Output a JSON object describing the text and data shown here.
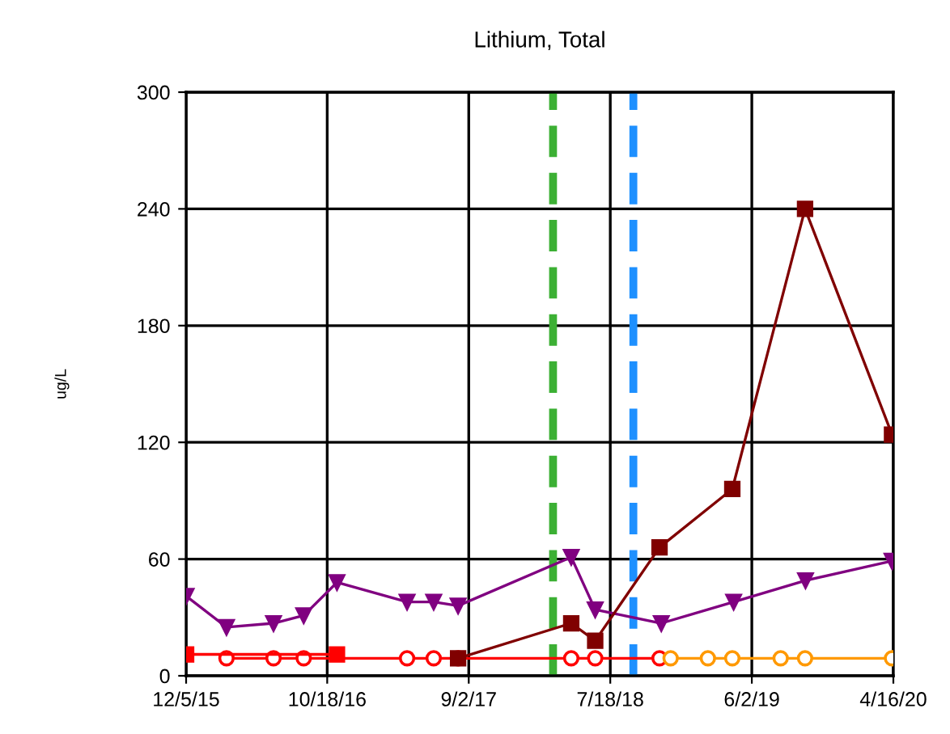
{
  "chart_data": {
    "type": "line",
    "title": "Lithium, Total",
    "ylabel": "ug/L",
    "series": [
      {
        "color": "#800080",
        "marker": "triangle",
        "x": [
          "2015-12-05",
          "2016-03-05",
          "2016-06-19",
          "2016-08-26",
          "2016-11-09",
          "2017-04-16",
          "2017-06-15",
          "2017-08-09",
          "2018-04-21",
          "2018-06-14",
          "2018-11-10",
          "2019-04-22",
          "2019-10-01",
          "2020-04-13"
        ],
        "values": [
          41,
          25,
          27,
          31,
          48,
          38,
          38,
          36,
          61,
          34,
          27,
          38,
          49,
          59
        ]
      },
      {
        "color": "#ff0000",
        "marker": "circle",
        "x": [
          "2016-03-05",
          "2016-06-19",
          "2016-08-26",
          "2017-04-16",
          "2017-06-15",
          "2017-08-09",
          "2018-04-21",
          "2018-06-14",
          "2018-11-06"
        ],
        "values": [
          9,
          9,
          9,
          9,
          9,
          9,
          9,
          9,
          9
        ]
      },
      {
        "color": "#ff0000",
        "marker": "square",
        "type": "line",
        "x": [
          "2015-12-05",
          "2016-11-09"
        ],
        "values": [
          11,
          11
        ]
      },
      {
        "color": "#800000",
        "marker": "square",
        "x": [
          "2017-08-09",
          "2018-04-21",
          "2018-06-14",
          "2018-11-06",
          "2019-04-19",
          "2019-09-30",
          "2020-04-13"
        ],
        "values": [
          9,
          27,
          18,
          66,
          96,
          240,
          124
        ]
      },
      {
        "color": "#ff9900",
        "marker": "circle",
        "x": [
          "2018-12-01",
          "2019-02-23",
          "2019-04-19",
          "2019-08-06",
          "2019-09-30",
          "2020-04-13"
        ],
        "values": [
          9,
          9,
          9,
          9,
          9,
          9
        ]
      }
    ],
    "xlim": [
      "2015-12-05",
      "2020-04-16"
    ],
    "xticks": [
      {
        "value": "2015-12-05",
        "label": "12/5/15"
      },
      {
        "value": "2016-10-18",
        "label": "10/18/16"
      },
      {
        "value": "2017-09-02",
        "label": "9/2/17"
      },
      {
        "value": "2018-07-18",
        "label": "7/18/18"
      },
      {
        "value": "2019-06-02",
        "label": "6/2/19"
      },
      {
        "value": "2020-04-16",
        "label": "4/16/20"
      }
    ],
    "ylim": [
      0,
      300
    ],
    "yticks": [
      0,
      60,
      120,
      180,
      240,
      300
    ],
    "grid": true,
    "ref_lines": [
      {
        "axis": "x",
        "value": "2018-03-11",
        "color": "#3cb034",
        "line_style": "dashed"
      },
      {
        "axis": "x",
        "value": "2018-09-08",
        "color": "#1e90ff",
        "line_style": "dashed"
      }
    ]
  }
}
